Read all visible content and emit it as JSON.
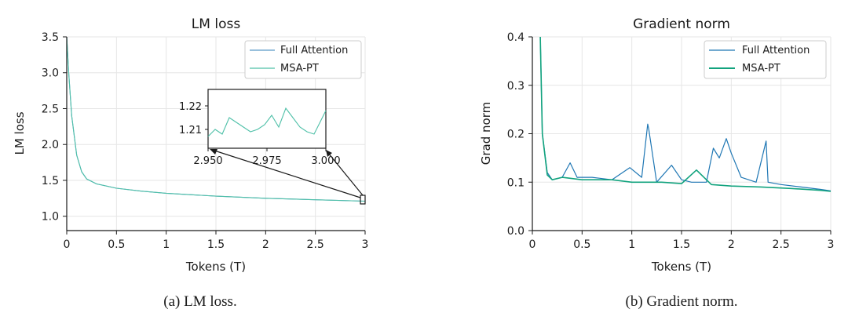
{
  "colors": {
    "full_attention_loss": "#5b9bc8",
    "msa_pt_loss": "#4fc0a8",
    "full_attention_grad": "#1f77b4",
    "msa_pt_grad": "#12a37e",
    "grid": "#e6e6e6"
  },
  "chart_data": [
    {
      "type": "line",
      "title": "LM loss",
      "xlabel": "Tokens (T)",
      "ylabel": "LM loss",
      "xlim": [
        0,
        3
      ],
      "ylim": [
        0.8,
        3.5
      ],
      "xticks": [
        "0",
        "0.5",
        "1",
        "1.5",
        "2",
        "2.5",
        "3"
      ],
      "yticks": [
        "1.0",
        "1.5",
        "2.0",
        "2.5",
        "3.0",
        "3.5"
      ],
      "grid": true,
      "legend_position": "top-right",
      "series": [
        {
          "name": "Full Attention",
          "x": [
            0,
            0.02,
            0.05,
            0.1,
            0.15,
            0.2,
            0.3,
            0.5,
            0.75,
            1.0,
            1.5,
            2.0,
            2.5,
            3.0
          ],
          "values": [
            3.5,
            3.0,
            2.4,
            1.85,
            1.62,
            1.52,
            1.45,
            1.39,
            1.35,
            1.32,
            1.28,
            1.25,
            1.23,
            1.21
          ]
        },
        {
          "name": "MSA-PT",
          "x": [
            0,
            0.02,
            0.05,
            0.1,
            0.15,
            0.2,
            0.3,
            0.5,
            0.75,
            1.0,
            1.5,
            2.0,
            2.5,
            3.0
          ],
          "values": [
            3.5,
            3.0,
            2.4,
            1.85,
            1.62,
            1.52,
            1.45,
            1.39,
            1.35,
            1.32,
            1.28,
            1.25,
            1.23,
            1.21
          ]
        }
      ],
      "inset": {
        "xlim": [
          2.95,
          3.0
        ],
        "ylim": [
          1.202,
          1.227
        ],
        "xticks": [
          "2.950",
          "2.975",
          "3.000"
        ],
        "yticks": [
          "1.21",
          "1.22"
        ],
        "x": [
          2.95,
          2.953,
          2.956,
          2.959,
          2.962,
          2.965,
          2.968,
          2.971,
          2.974,
          2.977,
          2.98,
          2.983,
          2.986,
          2.989,
          2.992,
          2.995,
          2.998,
          3.0
        ],
        "values": [
          1.207,
          1.21,
          1.208,
          1.215,
          1.213,
          1.211,
          1.209,
          1.21,
          1.212,
          1.216,
          1.211,
          1.219,
          1.215,
          1.211,
          1.209,
          1.208,
          1.214,
          1.218
        ]
      }
    },
    {
      "type": "line",
      "title": "Gradient norm",
      "xlabel": "Tokens (T)",
      "ylabel": "Grad norm",
      "xlim": [
        0,
        3
      ],
      "ylim": [
        0,
        0.4
      ],
      "xticks": [
        "0",
        "0.5",
        "1",
        "1.5",
        "2",
        "2.5",
        "3"
      ],
      "yticks": [
        "0.0",
        "0.1",
        "0.2",
        "0.3",
        "0.4"
      ],
      "grid": true,
      "legend_position": "top-right",
      "series": [
        {
          "name": "Full Attention",
          "x": [
            0.08,
            0.1,
            0.15,
            0.2,
            0.3,
            0.38,
            0.45,
            0.6,
            0.8,
            0.98,
            1.1,
            1.16,
            1.17,
            1.25,
            1.4,
            1.5,
            1.6,
            1.75,
            1.82,
            1.88,
            1.95,
            2.0,
            2.1,
            2.25,
            2.35,
            2.37,
            2.5,
            2.7,
            2.9,
            3.0
          ],
          "values": [
            0.4,
            0.2,
            0.12,
            0.105,
            0.11,
            0.14,
            0.11,
            0.11,
            0.105,
            0.13,
            0.11,
            0.22,
            0.21,
            0.1,
            0.135,
            0.105,
            0.1,
            0.1,
            0.17,
            0.15,
            0.19,
            0.16,
            0.11,
            0.1,
            0.185,
            0.1,
            0.095,
            0.09,
            0.085,
            0.082
          ]
        },
        {
          "name": "MSA-PT",
          "x": [
            0.08,
            0.1,
            0.15,
            0.2,
            0.3,
            0.5,
            0.8,
            1.0,
            1.3,
            1.5,
            1.65,
            1.8,
            2.0,
            2.3,
            2.6,
            2.9,
            3.0
          ],
          "values": [
            0.4,
            0.2,
            0.115,
            0.105,
            0.11,
            0.105,
            0.105,
            0.1,
            0.1,
            0.097,
            0.125,
            0.095,
            0.092,
            0.09,
            0.087,
            0.083,
            0.081
          ]
        }
      ]
    }
  ],
  "captions": {
    "left": "(a) LM loss.",
    "right": "(b) Gradient norm."
  }
}
